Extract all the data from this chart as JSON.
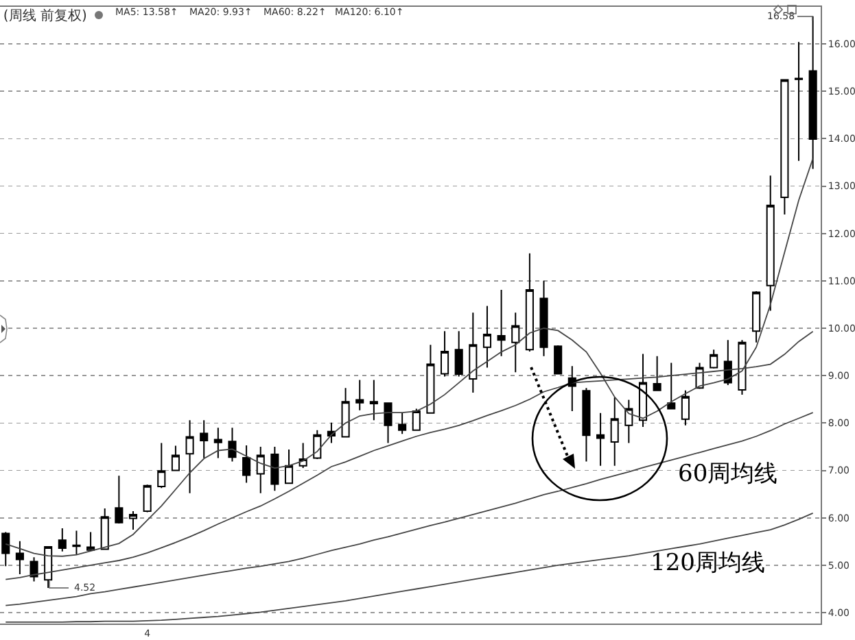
{
  "chart_data": {
    "type": "candlestick",
    "title": "(周线 前复权)",
    "categories": [
      null,
      null,
      null,
      null,
      null,
      null,
      null,
      null,
      null,
      null,
      "4",
      null,
      null,
      null,
      null,
      null,
      null,
      null,
      null,
      null,
      null,
      null,
      null,
      null,
      null,
      null,
      null,
      null,
      null,
      null,
      null,
      null,
      null,
      null,
      null,
      null,
      null,
      null,
      null,
      null,
      null,
      null,
      null,
      null,
      null,
      null,
      null,
      null,
      null,
      null,
      null,
      null,
      null,
      null,
      null,
      null,
      null,
      null
    ],
    "ohlc": [
      [
        5.67,
        5.7,
        4.98,
        5.25
      ],
      [
        5.25,
        5.51,
        4.81,
        5.12
      ],
      [
        5.08,
        5.17,
        4.66,
        4.76
      ],
      [
        4.69,
        5.4,
        4.52,
        5.39
      ],
      [
        5.53,
        5.78,
        5.29,
        5.36
      ],
      [
        5.42,
        5.73,
        5.22,
        5.4
      ],
      [
        5.32,
        5.7,
        5.3,
        5.38
      ],
      [
        5.34,
        6.2,
        5.34,
        6.02
      ],
      [
        6.21,
        6.89,
        5.88,
        5.9
      ],
      [
        5.99,
        6.14,
        5.75,
        6.07
      ],
      [
        6.14,
        6.7,
        6.12,
        6.68
      ],
      [
        6.66,
        7.58,
        6.63,
        6.99
      ],
      [
        7.0,
        7.52,
        7.0,
        7.32
      ],
      [
        7.35,
        8.06,
        6.52,
        7.71
      ],
      [
        7.78,
        8.06,
        7.26,
        7.63
      ],
      [
        7.65,
        7.9,
        7.26,
        7.59
      ],
      [
        7.61,
        7.9,
        7.19,
        7.28
      ],
      [
        7.27,
        7.53,
        6.74,
        6.9
      ],
      [
        6.93,
        7.5,
        6.52,
        7.32
      ],
      [
        7.34,
        7.5,
        6.57,
        6.71
      ],
      [
        6.73,
        7.44,
        6.72,
        7.1
      ],
      [
        7.1,
        7.58,
        7.05,
        7.24
      ],
      [
        7.26,
        7.85,
        7.24,
        7.75
      ],
      [
        7.82,
        8.01,
        7.58,
        7.73
      ],
      [
        7.71,
        8.74,
        7.7,
        8.45
      ],
      [
        8.49,
        8.91,
        8.27,
        8.43
      ],
      [
        8.45,
        8.91,
        8.06,
        8.41
      ],
      [
        8.42,
        8.42,
        7.58,
        7.95
      ],
      [
        7.97,
        8.21,
        7.77,
        7.85
      ],
      [
        7.85,
        8.3,
        7.85,
        8.25
      ],
      [
        8.21,
        9.65,
        8.21,
        9.24
      ],
      [
        9.04,
        9.94,
        8.98,
        9.51
      ],
      [
        9.55,
        9.94,
        8.98,
        9.03
      ],
      [
        8.93,
        10.33,
        8.64,
        9.65
      ],
      [
        9.6,
        10.47,
        9.17,
        9.87
      ],
      [
        9.84,
        10.81,
        9.41,
        9.75
      ],
      [
        9.7,
        10.33,
        9.07,
        10.05
      ],
      [
        9.55,
        11.58,
        9.51,
        10.81
      ],
      [
        10.63,
        11.0,
        9.41,
        9.6
      ],
      [
        9.62,
        9.64,
        9.04,
        9.04
      ],
      [
        8.95,
        9.2,
        8.25,
        8.78
      ],
      [
        8.68,
        8.74,
        7.19,
        7.74
      ],
      [
        7.75,
        8.21,
        7.1,
        7.68
      ],
      [
        7.6,
        8.54,
        7.1,
        8.09
      ],
      [
        7.95,
        8.49,
        7.58,
        8.3
      ],
      [
        8.06,
        9.46,
        7.92,
        8.85
      ],
      [
        8.83,
        9.41,
        8.69,
        8.69
      ],
      [
        8.42,
        9.27,
        8.3,
        8.3
      ],
      [
        8.08,
        8.69,
        7.95,
        8.56
      ],
      [
        8.74,
        9.27,
        8.72,
        9.17
      ],
      [
        9.17,
        9.55,
        9.15,
        9.44
      ],
      [
        9.3,
        9.75,
        8.8,
        8.85
      ],
      [
        8.7,
        9.75,
        8.6,
        9.7
      ],
      [
        9.94,
        10.78,
        9.7,
        10.76
      ],
      [
        10.9,
        13.22,
        10.37,
        12.59
      ],
      [
        12.76,
        15.25,
        12.4,
        15.24
      ],
      [
        15.25,
        16.04,
        13.53,
        15.27
      ],
      [
        15.43,
        16.58,
        13.36,
        13.99
      ]
    ],
    "series": [
      {
        "type": "line",
        "color": "#444444",
        "values": [
          5.45,
          5.35,
          5.25,
          5.2,
          5.19,
          5.22,
          5.3,
          5.38,
          5.46,
          5.65,
          5.95,
          6.25,
          6.6,
          6.95,
          7.25,
          7.42,
          7.45,
          7.3,
          7.15,
          7.05,
          7.1,
          7.2,
          7.4,
          7.75,
          8.0,
          8.15,
          8.2,
          8.22,
          8.22,
          8.25,
          8.4,
          8.6,
          8.85,
          9.1,
          9.3,
          9.5,
          9.65,
          9.9,
          10.0,
          9.95,
          9.75,
          9.5,
          9.05,
          8.55,
          8.2,
          8.1,
          8.25,
          8.45,
          8.62,
          8.78,
          8.85,
          8.93,
          9.1,
          9.6,
          10.5,
          11.6,
          12.7,
          13.58
        ]
      },
      {
        "type": "line",
        "color": "#444444",
        "values": [
          4.7,
          4.74,
          4.8,
          4.85,
          4.9,
          4.95,
          5.0,
          5.05,
          5.1,
          5.17,
          5.26,
          5.37,
          5.48,
          5.6,
          5.73,
          5.87,
          6.0,
          6.13,
          6.25,
          6.4,
          6.56,
          6.73,
          6.9,
          7.08,
          7.18,
          7.3,
          7.42,
          7.52,
          7.62,
          7.72,
          7.8,
          7.87,
          7.95,
          8.05,
          8.16,
          8.26,
          8.37,
          8.5,
          8.66,
          8.75,
          8.85,
          8.87,
          8.89,
          8.91,
          8.93,
          8.95,
          8.97,
          9.0,
          9.03,
          9.06,
          9.09,
          9.12,
          9.15,
          9.19,
          9.24,
          9.45,
          9.72,
          9.93
        ]
      },
      {
        "type": "line",
        "color": "#444444",
        "values": [
          4.15,
          4.18,
          4.22,
          4.26,
          4.3,
          4.34,
          4.4,
          4.44,
          4.49,
          4.54,
          4.59,
          4.64,
          4.69,
          4.74,
          4.79,
          4.84,
          4.89,
          4.94,
          4.98,
          5.03,
          5.08,
          5.15,
          5.23,
          5.31,
          5.38,
          5.45,
          5.53,
          5.6,
          5.68,
          5.76,
          5.84,
          5.91,
          5.99,
          6.07,
          6.15,
          6.23,
          6.31,
          6.4,
          6.49,
          6.56,
          6.64,
          6.72,
          6.81,
          6.89,
          6.97,
          7.06,
          7.14,
          7.22,
          7.3,
          7.38,
          7.46,
          7.54,
          7.62,
          7.72,
          7.84,
          7.98,
          8.1,
          8.22
        ]
      },
      {
        "type": "line",
        "color": "#444444",
        "values": [
          3.8,
          3.8,
          3.8,
          3.8,
          3.8,
          3.81,
          3.81,
          3.82,
          3.82,
          3.82,
          3.83,
          3.84,
          3.86,
          3.88,
          3.9,
          3.92,
          3.95,
          3.98,
          4.01,
          4.05,
          4.09,
          4.13,
          4.17,
          4.21,
          4.25,
          4.3,
          4.35,
          4.4,
          4.45,
          4.5,
          4.55,
          4.6,
          4.65,
          4.7,
          4.75,
          4.8,
          4.85,
          4.9,
          4.95,
          5.0,
          5.04,
          5.08,
          5.12,
          5.16,
          5.2,
          5.25,
          5.3,
          5.35,
          5.4,
          5.45,
          5.51,
          5.57,
          5.63,
          5.69,
          5.75,
          5.85,
          5.97,
          6.1
        ]
      }
    ],
    "ylim": [
      3.77,
      16.78
    ],
    "yticks": [
      {
        "value": 4,
        "label": "4.00"
      },
      {
        "value": 5,
        "label": "5.00"
      },
      {
        "value": 6,
        "label": "6.00"
      },
      {
        "value": 7,
        "label": "7.00"
      },
      {
        "value": 8,
        "label": "8.00"
      },
      {
        "value": 9,
        "label": "9.00"
      },
      {
        "value": 10,
        "label": "10.00"
      },
      {
        "value": 11,
        "label": "11.00"
      },
      {
        "value": 12,
        "label": "12.00"
      },
      {
        "value": 13,
        "label": "13.00"
      },
      {
        "value": 14,
        "label": "14.00"
      },
      {
        "value": 15,
        "label": "15.00"
      },
      {
        "value": 16,
        "label": "16.00"
      }
    ],
    "grid": "y",
    "legend": false,
    "marker": "none",
    "annotations": [
      "MA5: 13.58↑",
      "MA20: 9.93↑",
      "MA60: 8.22↑",
      "MA120: 6.10↑",
      "60周均线",
      "120周均线",
      "4.52",
      "16.58"
    ]
  }
}
